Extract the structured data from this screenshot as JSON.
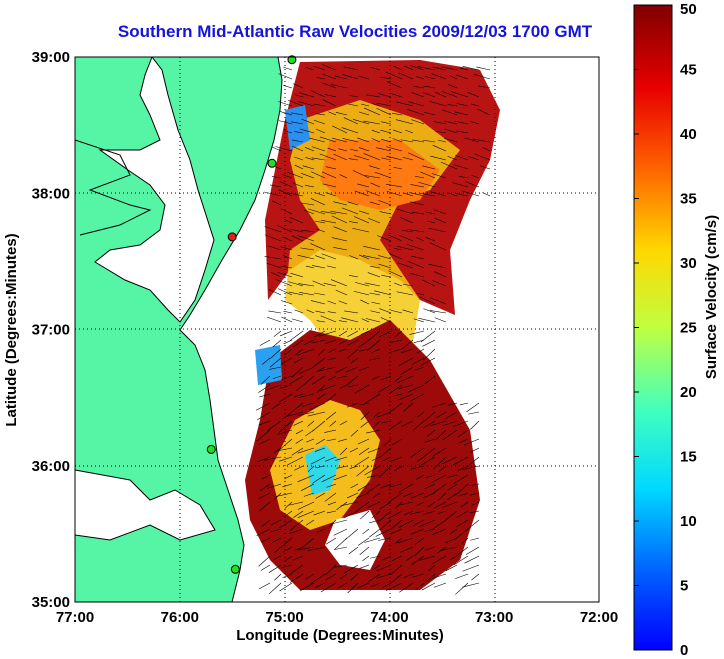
{
  "title": "Southern Mid-Atlantic Raw Velocities 2009/12/03 1700 GMT",
  "map": {
    "xlabel": "Longitude (Degrees:Minutes)",
    "ylabel": "Latitude (Degrees:Minutes)",
    "x_ticks": [
      "77:00",
      "76:00",
      "75:00",
      "74:00",
      "73:00",
      "72:00"
    ],
    "y_ticks": [
      "39:00",
      "38:00",
      "37:00",
      "36:00",
      "35:00"
    ],
    "lon_range": [
      -77,
      -72
    ],
    "lat_range": [
      35,
      39
    ],
    "land_color": "#55f5a5",
    "grid": "dotted"
  },
  "colorbar": {
    "label": "Surface Velocity (cm/s)",
    "ticks": [
      "0",
      "5",
      "10",
      "15",
      "20",
      "25",
      "30",
      "35",
      "40",
      "45",
      "50"
    ],
    "range": [
      0,
      50
    ],
    "colormap": "jet"
  },
  "stations": [
    {
      "lon": -74.93,
      "lat": 38.98,
      "color": "#22dd22"
    },
    {
      "lon": -75.12,
      "lat": 38.22,
      "color": "#22dd22"
    },
    {
      "lon": -75.5,
      "lat": 37.68,
      "color": "#dd2222"
    },
    {
      "lon": -75.7,
      "lat": 36.12,
      "color": "#22dd22"
    },
    {
      "lon": -75.47,
      "lat": 35.24,
      "color": "#22dd22"
    }
  ]
}
